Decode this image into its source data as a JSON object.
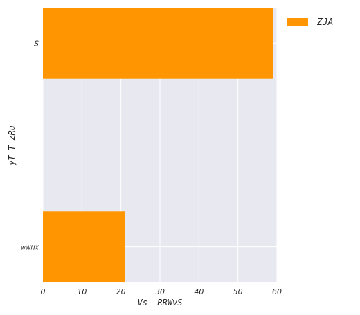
{
  "chart_data": {
    "type": "bar",
    "orientation": "horizontal",
    "categories": [
      "S",
      "wWNX"
    ],
    "series": [
      {
        "name": "ZJA",
        "values": [
          59,
          21
        ]
      }
    ],
    "xlabel": "Vs  RRWvS",
    "ylabel": "yT T zRu",
    "xlim": [
      0,
      60
    ],
    "xticks": [
      0,
      10,
      20,
      30,
      40,
      50,
      60
    ],
    "grid": true,
    "legend_position": "outside-top-right",
    "colors": {
      "bar": "#ff9500",
      "plot_background": "#e8e8f0",
      "grid": "#ffffff",
      "text": "#262626"
    }
  }
}
